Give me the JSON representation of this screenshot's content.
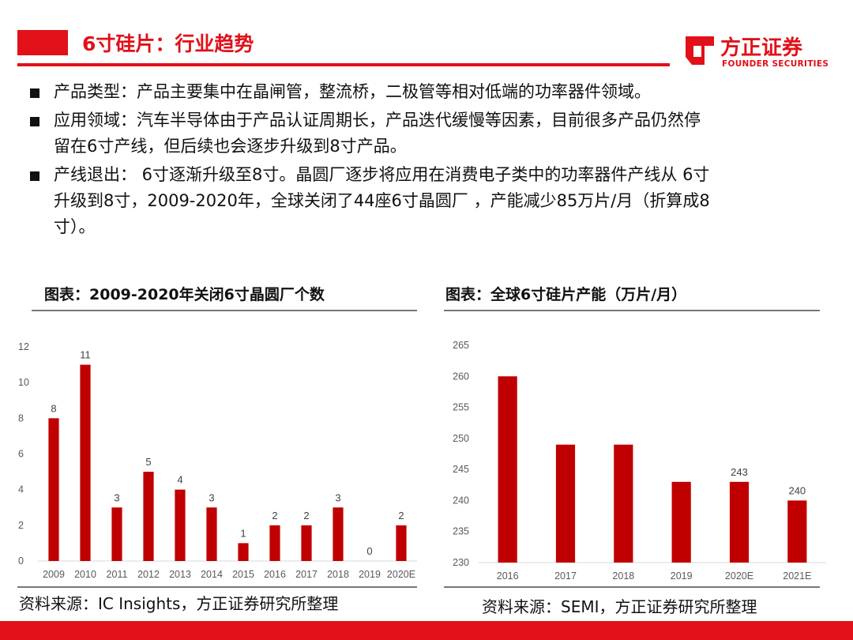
{
  "header": {
    "title": "6寸硅片：行业趋势",
    "accent": "#e11019"
  },
  "logo": {
    "name": "方正证券",
    "english": "FOUNDER SECURITIES",
    "icon": "founder-logo-icon"
  },
  "bullets": [
    {
      "lines": [
        "产品类型：产品主要集中在晶闸管，整流桥，二极管等相对低端的功率器件领域。"
      ]
    },
    {
      "lines": [
        "应用领域：汽车半导体由于产品认证周期长，产品迭代缓慢等因素，目前很多产品仍然停",
        "留在6寸产线，但后续也会逐步升级到8寸产品。"
      ]
    },
    {
      "lines": [
        "产线退出：  6寸逐渐升级至8寸。晶圆厂逐步将应用在消费电子类中的功率器件产线从  6寸",
        "升级到8寸，2009-2020年，全球关闭了44座6寸晶圆厂  ，产能减少85万片/月（折算成8",
        "寸）。"
      ]
    }
  ],
  "left_panel": {
    "title": "图表：2009-2020年关闭6寸晶圆厂个数",
    "source": "资料来源：IC Insights，方正证券研究所整理"
  },
  "right_panel": {
    "title": "图表：全球6寸硅片产能（万片/月）",
    "source": "资料来源：SEMI，方正证券研究所整理"
  },
  "chart_data": [
    {
      "type": "bar",
      "title": "图表：2009-2020年关闭6寸晶圆厂个数",
      "categories": [
        "2009",
        "2010",
        "2011",
        "2012",
        "2013",
        "2014",
        "2015",
        "2016",
        "2017",
        "2018",
        "2019",
        "2020E"
      ],
      "values": [
        8,
        11,
        3,
        5,
        4,
        3,
        1,
        2,
        2,
        3,
        0,
        2
      ],
      "data_labels": [
        "8",
        "11",
        "3",
        "5",
        "4",
        "3",
        "1",
        "2",
        "2",
        "3",
        "0",
        "2"
      ],
      "ylim": [
        0,
        12
      ],
      "yticks": [
        0,
        2,
        4,
        6,
        8,
        10,
        12
      ],
      "color": "#c00000",
      "grid": false,
      "legend": "none"
    },
    {
      "type": "bar",
      "title": "图表：全球6寸硅片产能（万片/月）",
      "categories": [
        "2016",
        "2017",
        "2018",
        "2019",
        "2020E",
        "2021E"
      ],
      "values": [
        260,
        249,
        249,
        243,
        243,
        240
      ],
      "data_labels": [
        "",
        "",
        "",
        "",
        "243",
        "240"
      ],
      "ylim": [
        230,
        265
      ],
      "yticks": [
        230,
        235,
        240,
        245,
        250,
        255,
        260,
        265
      ],
      "color": "#c00000",
      "grid": false,
      "legend": "none"
    }
  ],
  "footer": {
    "color": "#e11019"
  }
}
